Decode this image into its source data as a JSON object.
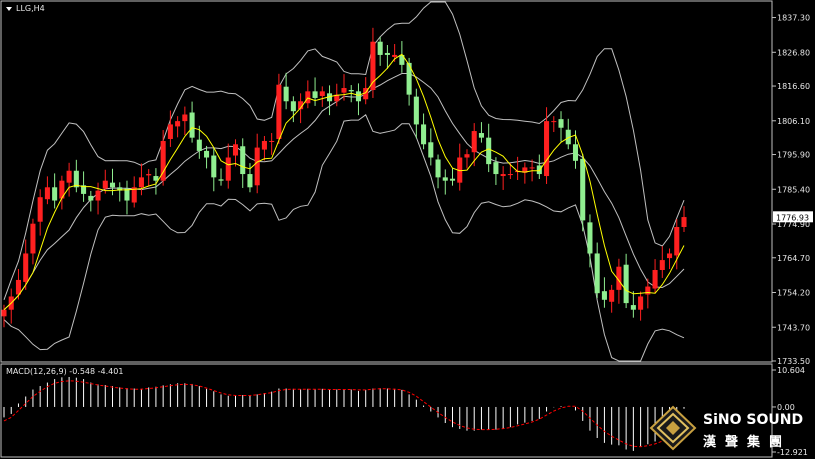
{
  "header": {
    "symbol_label": "LLG,H4"
  },
  "chart_data": [
    {
      "type": "candlestick",
      "title": "LLG,H4",
      "ylim": [
        1733.5,
        1842
      ],
      "y_ticks": [
        "1837.30",
        "1826.80",
        "1816.60",
        "1806.10",
        "1795.90",
        "1785.40",
        "1774.90",
        "1764.70",
        "1754.20",
        "1743.70",
        "1733.50"
      ],
      "current_price": "1776.93",
      "colors": {
        "up": "#ff2020",
        "down": "#90ee90",
        "ma": "#ffff00",
        "bands": "#c0c0c0"
      },
      "indicators": [
        "Bollinger Bands",
        "Moving Average"
      ],
      "closes": [
        1749,
        1753,
        1758,
        1766,
        1775,
        1783,
        1786,
        1782,
        1788,
        1791,
        1786,
        1784,
        1782,
        1785,
        1788,
        1786,
        1785,
        1782,
        1786,
        1789,
        1790,
        1788,
        1800,
        1805,
        1806,
        1808,
        1801,
        1797,
        1795,
        1789,
        1788,
        1795,
        1799,
        1790,
        1786,
        1798,
        1800,
        1800,
        1817,
        1812,
        1809,
        1812,
        1815,
        1813,
        1815,
        1812,
        1814,
        1816,
        1815,
        1812,
        1816,
        1830,
        1826,
        1826,
        1826,
        1823,
        1814,
        1805,
        1799,
        1795,
        1789,
        1788,
        1788,
        1795,
        1796,
        1803,
        1801,
        1793,
        1790,
        1790,
        1790,
        1791,
        1792,
        1792,
        1790,
        1806,
        1806,
        1804,
        1799,
        1794,
        1776,
        1766,
        1754,
        1752,
        1755,
        1762,
        1751,
        1749,
        1753,
        1756,
        1761,
        1764,
        1766,
        1774,
        1777
      ]
    },
    {
      "type": "bar",
      "title": "MACD(12,26,9) -0.548 -4.401",
      "name": "MACD(12,26,9)",
      "values_label": "-0.548 -4.401",
      "ylim": [
        -12.921,
        10.604
      ],
      "y_ticks": [
        "10.604",
        "0.00",
        "-12.921"
      ],
      "colors": {
        "histogram": "#ffffff",
        "signal": "#ff0000"
      },
      "histogram": [
        -3,
        -2,
        1,
        3,
        5,
        6,
        7,
        8,
        8.5,
        8.6,
        8.4,
        8,
        7,
        6.5,
        6.3,
        6,
        5.6,
        5.4,
        5.3,
        5.2,
        5.6,
        5.8,
        6.2,
        6.5,
        6.8,
        6.8,
        6.6,
        6,
        5.2,
        4.5,
        3.6,
        3.2,
        3.2,
        3.4,
        3.2,
        3.6,
        4,
        4.4,
        5.3,
        5.3,
        5.2,
        5.1,
        5.2,
        5.1,
        5.2,
        5,
        5,
        5,
        5,
        4.6,
        4.9,
        5.3,
        5.4,
        5.3,
        5.2,
        4.9,
        3.6,
        2.1,
        0.4,
        -1.3,
        -3,
        -4.6,
        -5.8,
        -6.3,
        -6.8,
        -6.8,
        -6.5,
        -6.5,
        -6.5,
        -6.3,
        -5.8,
        -5,
        -4.5,
        -4,
        -3.4,
        -1.3,
        -0.1,
        0.2,
        0,
        -1,
        -4,
        -6.8,
        -8.9,
        -10.3,
        -10.8,
        -11,
        -12.2,
        -12.6,
        -11.3,
        -10.7,
        -9.9,
        -8.6,
        -7.2,
        -4.4,
        -0.5
      ],
      "signal": [
        -4,
        -3,
        -1,
        1,
        3,
        4.5,
        5.8,
        6.8,
        7.3,
        7.5,
        7.4,
        7.1,
        6.7,
        6.3,
        6,
        5.7,
        5.4,
        5.2,
        5.1,
        5.1,
        5.3,
        5.5,
        5.8,
        6.1,
        6.4,
        6.5,
        6.4,
        6,
        5.4,
        4.7,
        4,
        3.5,
        3.3,
        3.3,
        3.3,
        3.5,
        3.8,
        4.1,
        4.7,
        5,
        5.1,
        5.1,
        5.1,
        5.1,
        5.1,
        5,
        5,
        5,
        5,
        4.9,
        4.9,
        5.1,
        5.2,
        5.2,
        5.1,
        4.9,
        4.2,
        3.1,
        1.5,
        0,
        -1.6,
        -3,
        -4.3,
        -5.3,
        -6,
        -6.4,
        -6.5,
        -6.5,
        -6.4,
        -6.2,
        -5.9,
        -5.4,
        -4.9,
        -4.3,
        -3.5,
        -2.3,
        -1.2,
        -0.3,
        0.2,
        0.2,
        -1.2,
        -3.2,
        -5.2,
        -7,
        -8.4,
        -9.5,
        -10.6,
        -11.3,
        -11.4,
        -11.1,
        -10.6,
        -9.8,
        -8.8,
        -7.1,
        -4.4
      ]
    }
  ],
  "watermark": {
    "brand": "SiNO SOUND",
    "chinese": "漢聲集團"
  }
}
